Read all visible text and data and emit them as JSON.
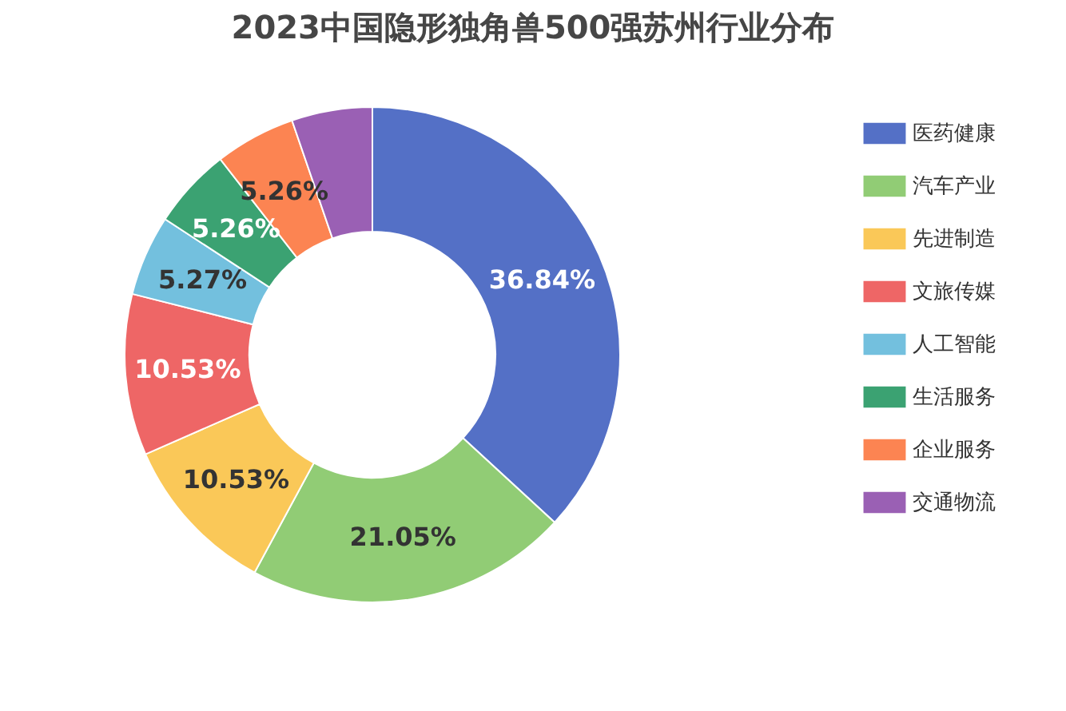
{
  "chart_data": {
    "type": "donut",
    "title": "2023中国隐形独角兽500强苏州行业分布",
    "categories": [
      "医药健康",
      "汽车产业",
      "先进制造",
      "文旅传媒",
      "人工智能",
      "生活服务",
      "企业服务",
      "交通物流"
    ],
    "values": [
      36.84,
      21.05,
      10.53,
      10.53,
      5.27,
      5.26,
      5.26,
      5.26
    ],
    "value_labels": [
      "36.84%",
      "21.05%",
      "10.53%",
      "10.53%",
      "5.27%",
      "5.26%",
      "5.26%",
      null
    ],
    "colors": [
      "#5470c6",
      "#91cc75",
      "#fac858",
      "#ee6666",
      "#73c0de",
      "#3ba272",
      "#fc8452",
      "#9a60b4"
    ],
    "legend": "right"
  }
}
